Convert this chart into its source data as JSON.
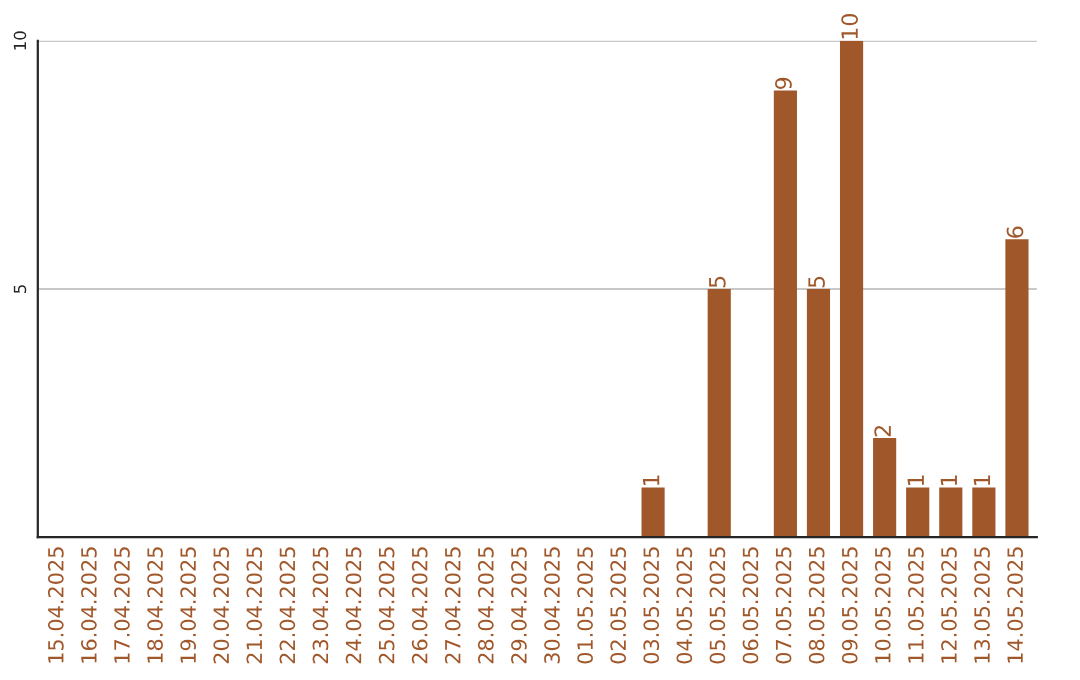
{
  "chart_data": {
    "type": "bar",
    "categories": [
      "15.04.2025",
      "16.04.2025",
      "17.04.2025",
      "18.04.2025",
      "19.04.2025",
      "20.04.2025",
      "21.04.2025",
      "22.04.2025",
      "23.04.2025",
      "24.04.2025",
      "25.04.2025",
      "26.04.2025",
      "27.04.2025",
      "28.04.2025",
      "29.04.2025",
      "30.04.2025",
      "01.05.2025",
      "02.05.2025",
      "03.05.2025",
      "04.05.2025",
      "05.05.2025",
      "06.05.2025",
      "07.05.2025",
      "08.05.2025",
      "09.05.2025",
      "10.05.2025",
      "11.05.2025",
      "12.05.2025",
      "13.05.2025",
      "14.05.2025"
    ],
    "values": [
      0,
      0,
      0,
      0,
      0,
      0,
      0,
      0,
      0,
      0,
      0,
      0,
      0,
      0,
      0,
      0,
      0,
      0,
      1,
      0,
      5,
      0,
      9,
      5,
      10,
      2,
      1,
      1,
      1,
      6
    ],
    "value_labels": [
      null,
      null,
      null,
      null,
      null,
      null,
      null,
      null,
      null,
      null,
      null,
      null,
      null,
      null,
      null,
      null,
      null,
      null,
      "1",
      null,
      "5",
      null,
      "9",
      "5",
      "10",
      "2",
      "1",
      "1",
      "1",
      "6"
    ],
    "color": "#a0572a",
    "ylim": [
      0,
      10
    ],
    "yticks": [
      5,
      10
    ],
    "grid": "y"
  }
}
